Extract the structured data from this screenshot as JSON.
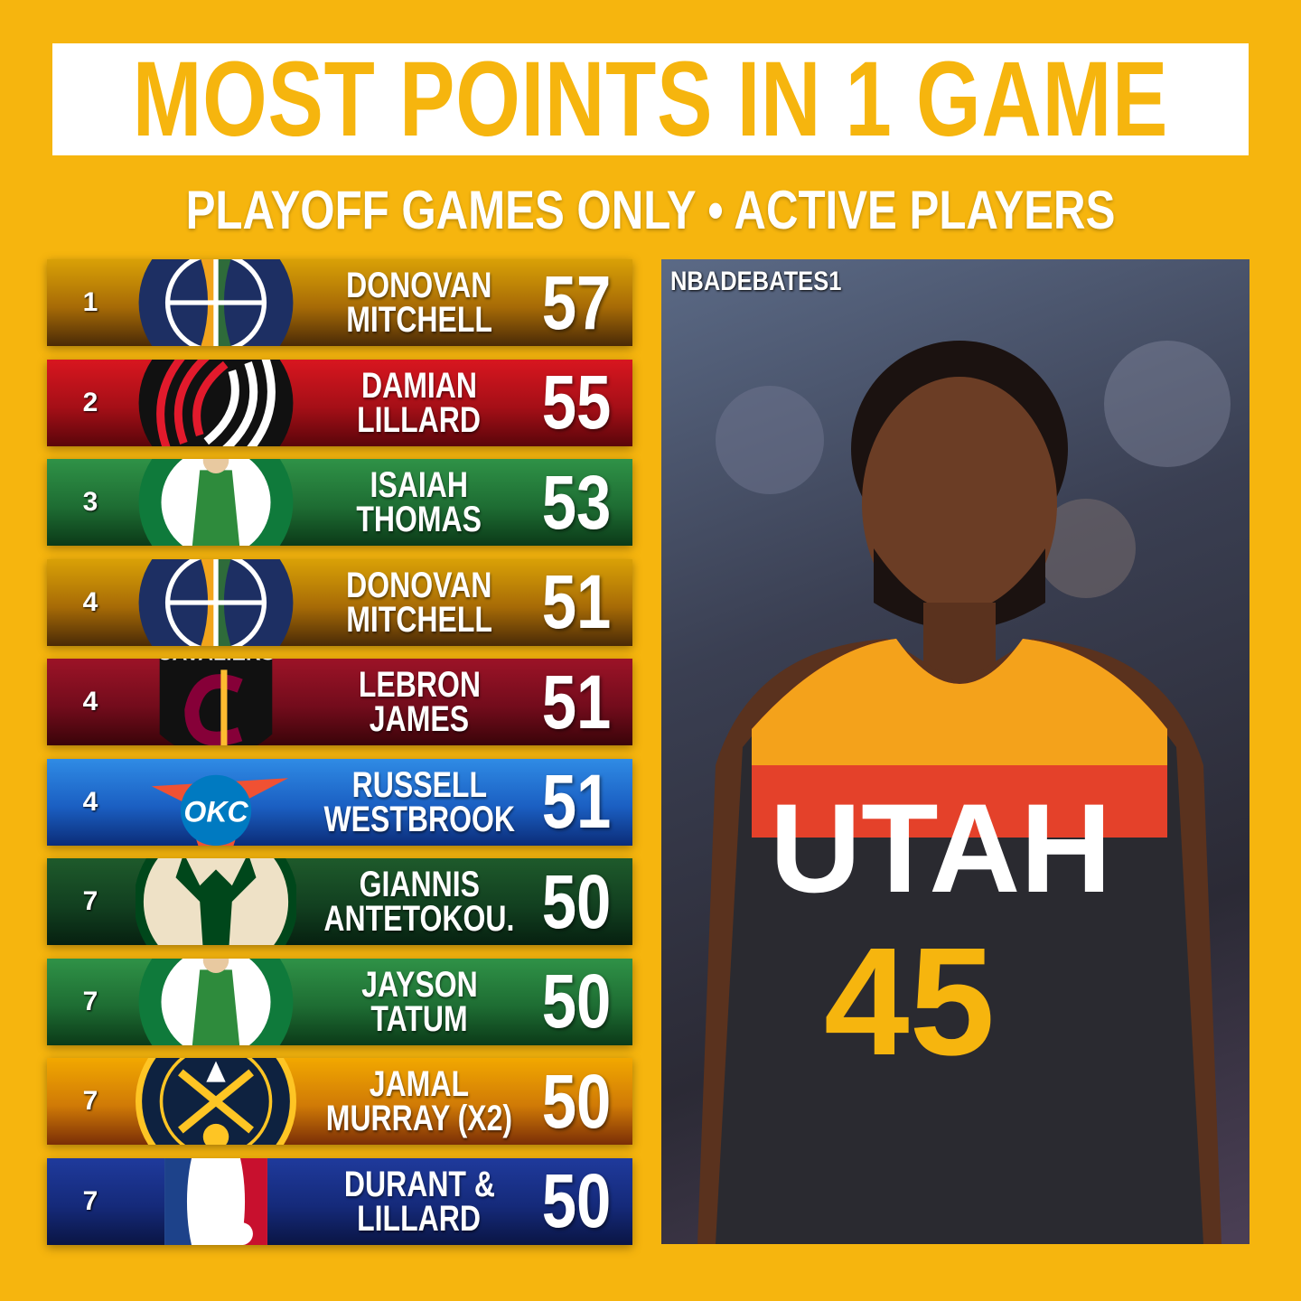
{
  "header": {
    "title": "MOST POINTS IN 1 GAME",
    "subtitle": "PLAYOFF GAMES ONLY • ACTIVE PLAYERS"
  },
  "rows": [
    {
      "rank": "1",
      "first": "DONOVAN",
      "last": "MITCHELL",
      "points": "57",
      "team": "jazz",
      "bg": "linear-gradient(180deg,#d9a106 0%,#a76b06 55%,#4a2a06 100%)"
    },
    {
      "rank": "2",
      "first": "DAMIAN",
      "last": "LILLARD",
      "points": "55",
      "team": "blazers",
      "bg": "linear-gradient(180deg,#d8161f 0%,#a50f17 55%,#5a050a 100%)"
    },
    {
      "rank": "3",
      "first": "ISAIAH",
      "last": "THOMAS",
      "points": "53",
      "team": "celtics",
      "bg": "linear-gradient(180deg,#2f9247 0%,#1e6d33 55%,#0b3a18 100%)"
    },
    {
      "rank": "4",
      "first": "DONOVAN",
      "last": "MITCHELL",
      "points": "51",
      "team": "jazz",
      "bg": "linear-gradient(180deg,#d9a106 0%,#a76b06 55%,#4a2a06 100%)"
    },
    {
      "rank": "4",
      "first": "LEBRON",
      "last": "JAMES",
      "points": "51",
      "team": "cavaliers",
      "bg": "linear-gradient(180deg,#9c1327 0%,#730c1c 55%,#3a0409 100%)"
    },
    {
      "rank": "4",
      "first": "RUSSELL",
      "last": "WESTBROOK",
      "points": "51",
      "team": "thunder",
      "bg": "linear-gradient(180deg,#2f8be5 0%,#1b5fc2 55%,#0b2c78 100%)"
    },
    {
      "rank": "7",
      "first": "GIANNIS",
      "last": "ANTETOKOU.",
      "points": "50",
      "team": "bucks",
      "bg": "linear-gradient(180deg,#1e5a2b 0%,#124020 55%,#062010 100%)"
    },
    {
      "rank": "7",
      "first": "JAYSON",
      "last": "TATUM",
      "points": "50",
      "team": "celtics",
      "bg": "linear-gradient(180deg,#2f9247 0%,#1e6d33 55%,#0b3a18 100%)"
    },
    {
      "rank": "7",
      "first": "JAMAL",
      "last": "MURRAY (X2)",
      "points": "50",
      "team": "nuggets",
      "bg": "linear-gradient(180deg,#f2a800 0%,#d07a06 55%,#7a2e06 100%)"
    },
    {
      "rank": "7",
      "first": "DURANT &",
      "last": "LILLARD",
      "points": "50",
      "team": "nba",
      "bg": "linear-gradient(180deg,#1f3a9c 0%,#152a7a 55%,#0a1544 100%)"
    }
  ],
  "photo": {
    "watermark": "NBADEBATES1"
  },
  "colors": {
    "background": "#f6b50e",
    "title": "#f6b50e"
  }
}
